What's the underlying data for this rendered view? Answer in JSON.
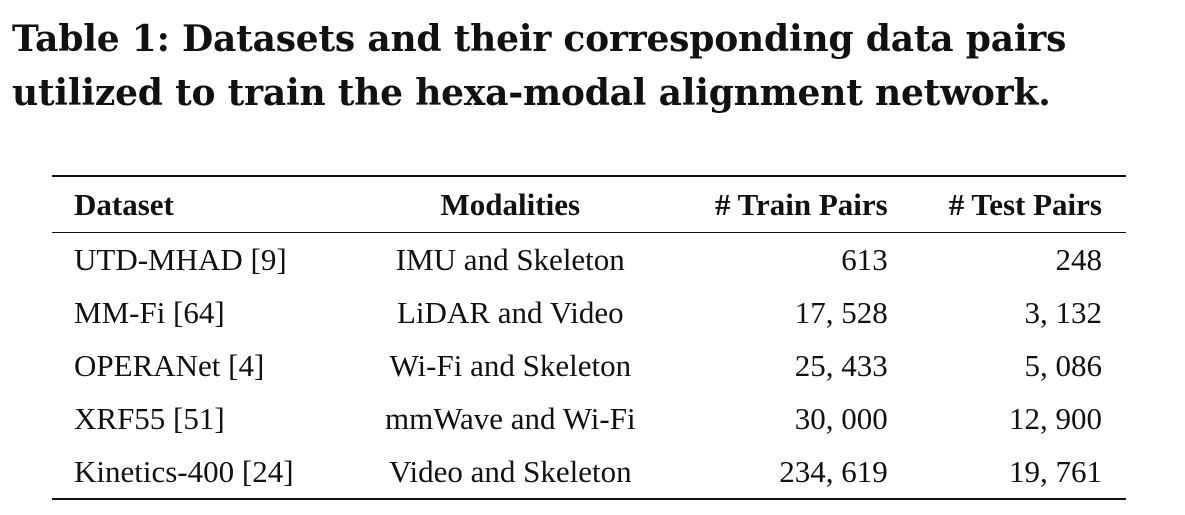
{
  "caption": "Table 1: Datasets and their corresponding data pairs utilized to train the hexa-modal alignment network.",
  "table": {
    "headers": {
      "dataset": "Dataset",
      "modalities": "Modalities",
      "train_pairs": "# Train Pairs",
      "test_pairs": "# Test Pairs"
    },
    "rows": [
      {
        "dataset": "UTD-MHAD [9]",
        "modalities": "IMU and Skeleton",
        "train_pairs": "613",
        "test_pairs": "248"
      },
      {
        "dataset": "MM-Fi [64]",
        "modalities": "LiDAR and Video",
        "train_pairs": "17, 528",
        "test_pairs": "3, 132"
      },
      {
        "dataset": "OPERANet [4]",
        "modalities": "Wi-Fi and Skeleton",
        "train_pairs": "25, 433",
        "test_pairs": "5, 086"
      },
      {
        "dataset": "XRF55 [51]",
        "modalities": "mmWave and Wi-Fi",
        "train_pairs": "30, 000",
        "test_pairs": "12, 900"
      },
      {
        "dataset": "Kinetics-400 [24]",
        "modalities": "Video and Skeleton",
        "train_pairs": "234, 619",
        "test_pairs": "19, 761"
      }
    ]
  }
}
